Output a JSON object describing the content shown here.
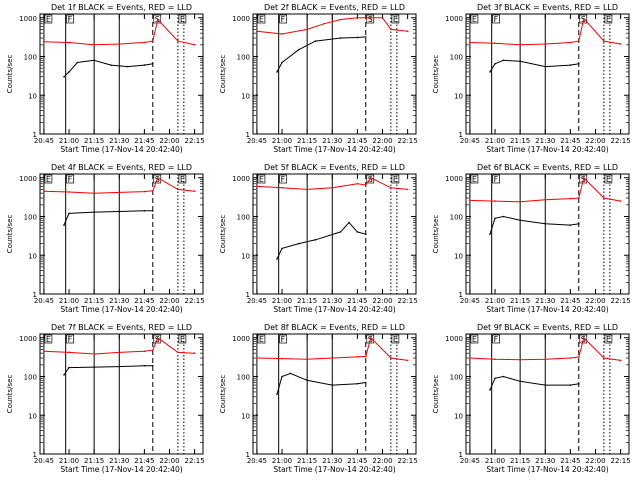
{
  "figure": {
    "time_start": "20:42:40",
    "xlabel": "Start Time (17-Nov-14 20:42:40)",
    "ylabel": "Counts/sec",
    "x_ticks": [
      "20:45",
      "21:00",
      "21:15",
      "21:30",
      "21:45",
      "22:00",
      "22:15"
    ],
    "y_ticks": [
      "1",
      "10",
      "100",
      "1000"
    ],
    "colors": {
      "events": "#000000",
      "lld": "#ff0000"
    },
    "markers": [
      {
        "label": "E",
        "t": "20:45",
        "style": "solid"
      },
      {
        "label": "F",
        "t": "20:58",
        "style": "solid"
      },
      {
        "label": "S",
        "t": "21:50",
        "style": "dashed"
      },
      {
        "label": "E",
        "t": "22:05",
        "style": "dotted"
      }
    ]
  },
  "chart_data": [
    {
      "type": "line",
      "title": "Det 1f BLACK = Events, RED = LLD",
      "x_unit": "time",
      "ylim": [
        1,
        1000
      ],
      "y_scale": "log",
      "series": [
        {
          "name": "Events",
          "points": [
            [
              "20:57",
              30
            ],
            [
              "21:00",
              40
            ],
            [
              "21:05",
              70
            ],
            [
              "21:15",
              80
            ],
            [
              "21:25",
              60
            ],
            [
              "21:35",
              55
            ],
            [
              "21:45",
              60
            ],
            [
              "21:50",
              65
            ]
          ]
        },
        {
          "name": "LLD",
          "points": [
            [
              "20:45",
              240
            ],
            [
              "21:00",
              230
            ],
            [
              "21:15",
              200
            ],
            [
              "21:30",
              210
            ],
            [
              "21:45",
              230
            ],
            [
              "21:50",
              250
            ],
            [
              "21:53",
              900
            ],
            [
              "22:05",
              250
            ],
            [
              "22:15",
              200
            ]
          ]
        }
      ]
    },
    {
      "type": "line",
      "title": "Det 2f BLACK = Events, RED = LLD",
      "x_unit": "time",
      "ylim": [
        1,
        1000
      ],
      "y_scale": "log",
      "series": [
        {
          "name": "Events",
          "points": [
            [
              "20:57",
              40
            ],
            [
              "21:00",
              70
            ],
            [
              "21:10",
              150
            ],
            [
              "21:20",
              250
            ],
            [
              "21:35",
              300
            ],
            [
              "21:45",
              310
            ],
            [
              "21:50",
              320
            ]
          ]
        },
        {
          "name": "LLD",
          "points": [
            [
              "20:45",
              450
            ],
            [
              "21:00",
              380
            ],
            [
              "21:15",
              500
            ],
            [
              "21:25",
              700
            ],
            [
              "21:35",
              900
            ],
            [
              "21:45",
              1000
            ],
            [
              "21:53",
              1000
            ],
            [
              "22:00",
              1000
            ],
            [
              "22:05",
              500
            ],
            [
              "22:15",
              450
            ]
          ]
        }
      ]
    },
    {
      "type": "line",
      "title": "Det 3f BLACK = Events, RED = LLD",
      "x_unit": "time",
      "ylim": [
        1,
        1000
      ],
      "y_scale": "log",
      "series": [
        {
          "name": "Events",
          "points": [
            [
              "20:57",
              40
            ],
            [
              "21:00",
              65
            ],
            [
              "21:05",
              80
            ],
            [
              "21:15",
              75
            ],
            [
              "21:30",
              55
            ],
            [
              "21:45",
              60
            ],
            [
              "21:50",
              65
            ]
          ]
        },
        {
          "name": "LLD",
          "points": [
            [
              "20:45",
              230
            ],
            [
              "21:00",
              220
            ],
            [
              "21:15",
              200
            ],
            [
              "21:30",
              210
            ],
            [
              "21:45",
              230
            ],
            [
              "21:50",
              250
            ],
            [
              "21:53",
              950
            ],
            [
              "22:05",
              250
            ],
            [
              "22:15",
              210
            ]
          ]
        }
      ]
    },
    {
      "type": "line",
      "title": "Det 4f BLACK = Events, RED = LLD",
      "x_unit": "time",
      "ylim": [
        1,
        1000
      ],
      "y_scale": "log",
      "series": [
        {
          "name": "Events",
          "points": [
            [
              "20:57",
              60
            ],
            [
              "21:00",
              120
            ],
            [
              "21:15",
              130
            ],
            [
              "21:30",
              135
            ],
            [
              "21:45",
              140
            ],
            [
              "21:50",
              140
            ]
          ]
        },
        {
          "name": "LLD",
          "points": [
            [
              "20:45",
              450
            ],
            [
              "21:00",
              430
            ],
            [
              "21:15",
              400
            ],
            [
              "21:30",
              420
            ],
            [
              "21:45",
              440
            ],
            [
              "21:50",
              460
            ],
            [
              "21:53",
              1000
            ],
            [
              "22:05",
              500
            ],
            [
              "22:15",
              450
            ]
          ]
        }
      ]
    },
    {
      "type": "line",
      "title": "Det 5f BLACK = Events, RED = LLD",
      "x_unit": "time",
      "ylim": [
        1,
        1000
      ],
      "y_scale": "log",
      "series": [
        {
          "name": "Events",
          "points": [
            [
              "20:57",
              8
            ],
            [
              "21:00",
              15
            ],
            [
              "21:10",
              20
            ],
            [
              "21:20",
              25
            ],
            [
              "21:35",
              40
            ],
            [
              "21:40",
              70
            ],
            [
              "21:45",
              40
            ],
            [
              "21:50",
              35
            ]
          ]
        },
        {
          "name": "LLD",
          "points": [
            [
              "20:45",
              600
            ],
            [
              "21:00",
              550
            ],
            [
              "21:15",
              500
            ],
            [
              "21:30",
              550
            ],
            [
              "21:45",
              700
            ],
            [
              "21:50",
              650
            ],
            [
              "21:53",
              1000
            ],
            [
              "22:05",
              550
            ],
            [
              "22:15",
              500
            ]
          ]
        }
      ]
    },
    {
      "type": "line",
      "title": "Det 6f BLACK = Events, RED = LLD",
      "x_unit": "time",
      "ylim": [
        1,
        1000
      ],
      "y_scale": "log",
      "series": [
        {
          "name": "Events",
          "points": [
            [
              "20:57",
              35
            ],
            [
              "21:00",
              90
            ],
            [
              "21:05",
              100
            ],
            [
              "21:15",
              80
            ],
            [
              "21:30",
              65
            ],
            [
              "21:45",
              60
            ],
            [
              "21:50",
              65
            ]
          ]
        },
        {
          "name": "LLD",
          "points": [
            [
              "20:45",
              260
            ],
            [
              "21:00",
              250
            ],
            [
              "21:15",
              240
            ],
            [
              "21:30",
              270
            ],
            [
              "21:45",
              290
            ],
            [
              "21:50",
              300
            ],
            [
              "21:53",
              1000
            ],
            [
              "22:05",
              300
            ],
            [
              "22:15",
              250
            ]
          ]
        }
      ]
    },
    {
      "type": "line",
      "title": "Det 7f BLACK = Events, RED = LLD",
      "x_unit": "time",
      "ylim": [
        1,
        1000
      ],
      "y_scale": "log",
      "series": [
        {
          "name": "Events",
          "points": [
            [
              "20:57",
              110
            ],
            [
              "21:00",
              170
            ],
            [
              "21:15",
              175
            ],
            [
              "21:30",
              180
            ],
            [
              "21:45",
              190
            ],
            [
              "21:50",
              190
            ]
          ]
        },
        {
          "name": "LLD",
          "points": [
            [
              "20:45",
              450
            ],
            [
              "21:00",
              420
            ],
            [
              "21:15",
              380
            ],
            [
              "21:30",
              420
            ],
            [
              "21:45",
              450
            ],
            [
              "21:50",
              480
            ],
            [
              "21:53",
              1000
            ],
            [
              "22:05",
              420
            ],
            [
              "22:15",
              400
            ]
          ]
        }
      ]
    },
    {
      "type": "line",
      "title": "Det 8f BLACK = Events, RED = LLD",
      "x_unit": "time",
      "ylim": [
        1,
        1000
      ],
      "y_scale": "log",
      "series": [
        {
          "name": "Events",
          "points": [
            [
              "20:57",
              35
            ],
            [
              "21:00",
              100
            ],
            [
              "21:05",
              120
            ],
            [
              "21:15",
              80
            ],
            [
              "21:30",
              60
            ],
            [
              "21:45",
              65
            ],
            [
              "21:50",
              70
            ]
          ]
        },
        {
          "name": "LLD",
          "points": [
            [
              "20:45",
              300
            ],
            [
              "21:00",
              290
            ],
            [
              "21:15",
              280
            ],
            [
              "21:30",
              300
            ],
            [
              "21:45",
              320
            ],
            [
              "21:50",
              330
            ],
            [
              "21:53",
              1000
            ],
            [
              "22:05",
              300
            ],
            [
              "22:15",
              260
            ]
          ]
        }
      ]
    },
    {
      "type": "line",
      "title": "Det 9f BLACK = Events, RED = LLD",
      "x_unit": "time",
      "ylim": [
        1,
        1000
      ],
      "y_scale": "log",
      "series": [
        {
          "name": "Events",
          "points": [
            [
              "20:57",
              45
            ],
            [
              "21:00",
              90
            ],
            [
              "21:05",
              100
            ],
            [
              "21:15",
              75
            ],
            [
              "21:30",
              60
            ],
            [
              "21:45",
              60
            ],
            [
              "21:50",
              65
            ]
          ]
        },
        {
          "name": "LLD",
          "points": [
            [
              "20:45",
              300
            ],
            [
              "21:00",
              280
            ],
            [
              "21:15",
              270
            ],
            [
              "21:30",
              280
            ],
            [
              "21:45",
              300
            ],
            [
              "21:50",
              320
            ],
            [
              "21:53",
              1000
            ],
            [
              "22:05",
              300
            ],
            [
              "22:15",
              260
            ]
          ]
        }
      ]
    }
  ]
}
